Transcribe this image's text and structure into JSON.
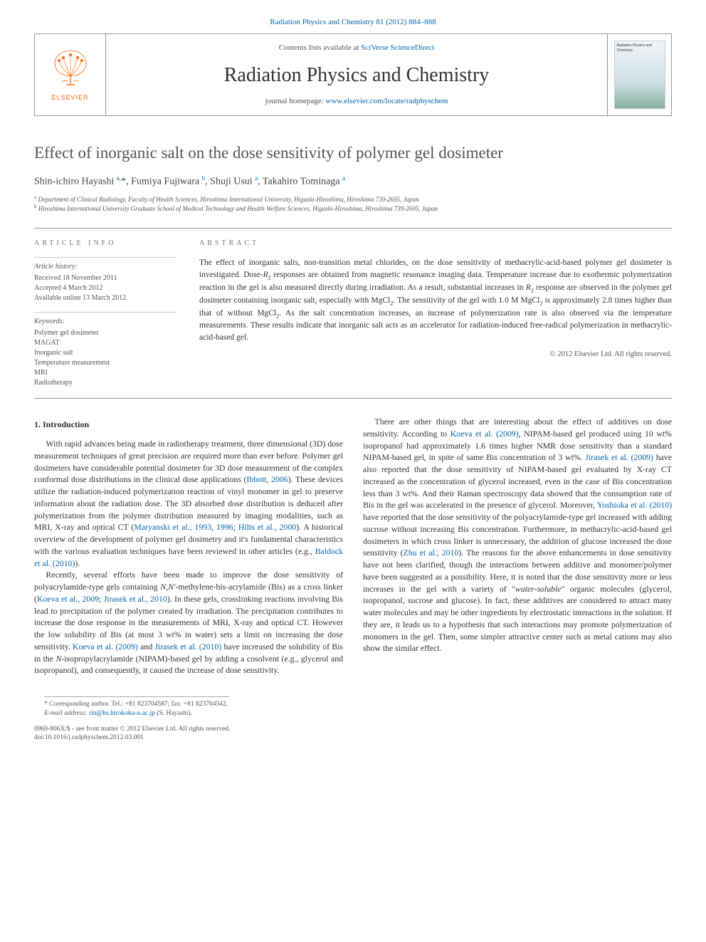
{
  "top_link": {
    "journal": "Radiation Physics and Chemistry 81 (2012) 884–888"
  },
  "header": {
    "elsevier_label": "ELSEVIER",
    "contents_prefix": "Contents lists available at ",
    "contents_link": "SciVerse ScienceDirect",
    "journal_title": "Radiation Physics and Chemistry",
    "homepage_prefix": "journal homepage: ",
    "homepage_link": "www.elsevier.com/locate/radphyschem",
    "cover_text": "Radiation Physics and Chemistry"
  },
  "article": {
    "title": "Effect of inorganic salt on the dose sensitivity of polymer gel dosimeter",
    "authors_html": "Shin-ichiro Hayashi <sup class='sup'>a,</sup>*, Fumiya Fujiwara <sup class='sup'>b</sup>, Shuji Usui <sup class='sup'>a</sup>, Takahiro Tominaga <sup class='sup'>a</sup>",
    "affiliation_a": "Department of Clinical Radiology, Faculty of Health Sciences, Hiroshima International University, Higashi-Hiroshima, Hiroshima 739-2695, Japan",
    "affiliation_b": "Hiroshima International University Graduate School of Medical Technology and Health Welfare Sciences, Higashi-Hiroshima, Hiroshima 739-2695, Japan"
  },
  "info": {
    "header": "ARTICLE INFO",
    "history_title": "Article history:",
    "received": "Received 18 November 2011",
    "accepted": "Accepted 4 March 2012",
    "online": "Available online 13 March 2012",
    "keywords_title": "Keywords:",
    "keywords": [
      "Polymer gel dosimeter",
      "MAGAT",
      "Inorganic salt",
      "Temperature measurement",
      "MRI",
      "Radiotherapy"
    ]
  },
  "abstract": {
    "header": "ABSTRACT",
    "text_html": "The effect of inorganic salts, non-transition metal chlorides, on the dose sensitivity of methacrylic-acid-based polymer gel dosimeter is investigated. Dose-<span class='ital'>R</span><span class='sub'>2</span> responses are obtained from magnetic resonance imaging data. Temperature increase due to exothermic polymerization reaction in the gel is also measured directly during irradiation. As a result, substantial increases in <span class='ital'>R</span><span class='sub'>2</span> response are observed in the polymer gel dosimeter containing inorganic salt, especially with MgCl<span class='sub'>2</span>. The sensitivity of the gel with 1.0 M MgCl<span class='sub'>2</span> is approximately 2.8 times higher than that of without MgCl<span class='sub'>2</span>. As the salt concentration increases, an increase of polymerization rate is also observed via the temperature measurements. These results indicate that inorganic salt acts as an accelerator for radiation-induced free-radical polymerization in methacrylic-acid-based gel.",
    "copyright": "© 2012 Elsevier Ltd. All rights reserved."
  },
  "body": {
    "section1_heading": "1. Introduction",
    "p1_html": "With rapid advances being made in radiotherapy treatment, three dimensional (3D) dose measurement techniques of great precision are required more than ever before. Polymer gel dosimeters have considerable potential dosimeter for 3D dose measurement of the complex conformal dose distributions in the clinical dose applications (<a class='ref-link' href='#' data-name='ref-link' data-interactable='true'>Ibbott, 2006</a>). These devices utilize the radiation-induced polymerization reaction of vinyl monomer in gel to preserve information about the radiation dose. The 3D absorbed dose distribution is deduced after polymerization from the polymer distribution measured by imaging modalities, such as MRI, X-ray and optical CT (<a class='ref-link' href='#' data-name='ref-link' data-interactable='true'>Maryanski et al., 1993</a>, <a class='ref-link' href='#' data-name='ref-link' data-interactable='true'>1996</a>; <a class='ref-link' href='#' data-name='ref-link' data-interactable='true'>Hilts et al., 2000</a>). A historical overview of the development of polymer gel dosimetry and it's fundamental characteristics with the various evaluation techniques have been reviewed in other articles (e.g., <a class='ref-link' href='#' data-name='ref-link' data-interactable='true'>Baldock et al. (2010)</a>).",
    "p2_html": "Recently, several efforts have been made to improve the dose sensitivity of polyacrylamide-type gels containing <span class='ital'>N</span>,<span class='ital'>N'</span>-methylene-bis-acrylamide (Bis) as a cross linker (<a class='ref-link' href='#' data-name='ref-link' data-interactable='true'>Koeva et al., 2009</a>; <a class='ref-link' href='#' data-name='ref-link' data-interactable='true'>Jirasek et al., 2010</a>). In these gels, crosslinking reactions involving Bis lead to precipitation of the polymer created by irradiation. The precipitation contributes to increase the dose response in the measurements of MRI, X-ray and optical CT. However the low solubility of Bis (at most 3 wt% in water) sets a limit on increasing the dose sensitivity. <a class='ref-link' href='#' data-name='ref-link' data-interactable='true'>Koeva et al. (2009)</a> and <a class='ref-link' href='#' data-name='ref-link' data-interactable='true'>Jirasek et al. (2010)</a> have increased the solubility of Bis in the <span class='ital'>N</span>-isopropylacrylamide (NIPAM)-based gel by adding a cosolvent (e.g., glycerol and isopropanol), and consequently, it caused the increase of dose sensitivity.",
    "p3_html": "There are other things that are interesting about the effect of additives on dose sensitivity. According to <a class='ref-link' href='#' data-name='ref-link' data-interactable='true'>Koeva et al. (2009)</a>, NIPAM-based gel produced using 10 wt% isopropanol had approximately 1.6 times higher NMR dose sensitivity than a standard NIPAM-based gel, in spite of same Bis concentration of 3 wt%. <a class='ref-link' href='#' data-name='ref-link' data-interactable='true'>Jirasek et al. (2009)</a> have also reported that the dose sensitivity of NIPAM-based gel evaluated by X-ray CT increased as the concentration of glycerol increased, even in the case of Bis concentration less than 3 wt%. And their Raman spectroscopy data showed that the consumption rate of Bis in the gel was accelerated in the presence of glycerol. Moreover, <a class='ref-link' href='#' data-name='ref-link' data-interactable='true'>Yoshioka et al. (2010)</a> have reported that the dose sensitivity of the polyacrylamide-type gel increased with adding sucrose without increasing Bis concentration. Furthermore, in methacrylic-acid-based gel dosimeters in which cross linker is unnecessary, the addition of glucose increased the dose sensitivity (<a class='ref-link' href='#' data-name='ref-link' data-interactable='true'>Zhu et al., 2010</a>). The reasons for the above enhancements in dose sensitivity have not been clarified, though the interactions between additive and monomer/polymer have been suggested as a possibility. Here, it is noted that the dose sensitivity more or less increases in the gel with a variety of \"<span class='ital'>water-soluble</span>\" organic molecules (glycerol, isopropanol, sucrose and glucose). In fact, these additives are considered to attract many water molecules and may be other ingredients by electrostatic interactions in the solution. If they are, it leads us to a hypothesis that such interactions may promote polymerization of monomers in the gel. Then, some simpler attractive center such as metal cations may also show the similar effect."
  },
  "footer": {
    "corr": "* Corresponding author. Tel.: +81 823704587; fax: +81 823704542.",
    "email_label": "E-mail address:",
    "email": "rin@hs.hirokoku-u.ac.jp",
    "email_name": "(S. Hayashi).",
    "issn": "0969-806X/$ - see front matter © 2012 Elsevier Ltd. All rights reserved.",
    "doi": "doi:10.1016/j.radphyschem.2012.03.001"
  },
  "colors": {
    "link": "#0066aa",
    "elsevier_orange": "#ff6600",
    "border": "#999999",
    "text": "#333333",
    "muted": "#555555"
  }
}
